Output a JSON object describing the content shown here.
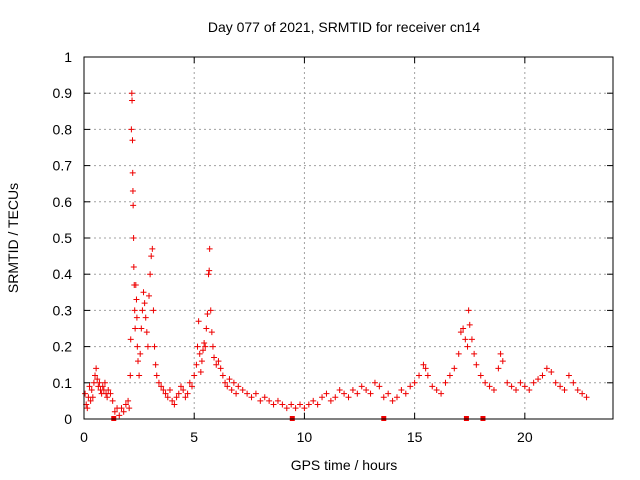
{
  "chart_data": {
    "type": "scatter",
    "title": "Day 077 of 2021, SRMTID for receiver cn14",
    "xlabel": "GPS time / hours",
    "ylabel": "SRMTID / TECUs",
    "xlim": [
      0,
      24
    ],
    "ylim": [
      0,
      1
    ],
    "x_ticks": [
      0,
      5,
      10,
      15,
      20
    ],
    "x_tick_labels": [
      "0",
      "5",
      "10",
      "15",
      "20"
    ],
    "y_ticks": [
      0,
      0.1,
      0.2,
      0.3,
      0.4,
      0.5,
      0.6,
      0.7,
      0.8,
      0.9,
      1
    ],
    "y_tick_labels": [
      "0",
      "0.1",
      "0.2",
      "0.3",
      "0.4",
      "0.5",
      "0.6",
      "0.7",
      "0.8",
      "0.9",
      "1"
    ],
    "grid": true,
    "marker": "+",
    "color": "#ee0000",
    "series": [
      {
        "name": "SRMTID",
        "points": [
          [
            0.05,
            0.07
          ],
          [
            0.1,
            0.04
          ],
          [
            0.15,
            0.03
          ],
          [
            0.2,
            0.06
          ],
          [
            0.25,
            0.09
          ],
          [
            0.3,
            0.05
          ],
          [
            0.35,
            0.08
          ],
          [
            0.4,
            0.06
          ],
          [
            0.45,
            0.1
          ],
          [
            0.5,
            0.12
          ],
          [
            0.55,
            0.14
          ],
          [
            0.6,
            0.11
          ],
          [
            0.65,
            0.09
          ],
          [
            0.7,
            0.1
          ],
          [
            0.75,
            0.08
          ],
          [
            0.8,
            0.07
          ],
          [
            0.85,
            0.09
          ],
          [
            0.9,
            0.08
          ],
          [
            0.95,
            0.1
          ],
          [
            1.0,
            0.07
          ],
          [
            1.05,
            0.06
          ],
          [
            1.1,
            0.08
          ],
          [
            1.2,
            0.07
          ],
          [
            1.3,
            0.05
          ],
          [
            1.4,
            0.02
          ],
          [
            1.5,
            0.03
          ],
          [
            1.6,
            0.01
          ],
          [
            1.7,
            0.03
          ],
          [
            1.8,
            0.02
          ],
          [
            1.9,
            0.04
          ],
          [
            2.0,
            0.05
          ],
          [
            2.05,
            0.03
          ],
          [
            2.1,
            0.12
          ],
          [
            2.12,
            0.22
          ],
          [
            2.15,
            0.8
          ],
          [
            2.17,
            0.9
          ],
          [
            2.18,
            0.88
          ],
          [
            2.2,
            0.77
          ],
          [
            2.21,
            0.68
          ],
          [
            2.22,
            0.63
          ],
          [
            2.23,
            0.59
          ],
          [
            2.25,
            0.5
          ],
          [
            2.26,
            0.42
          ],
          [
            2.28,
            0.37
          ],
          [
            2.3,
            0.3
          ],
          [
            2.32,
            0.25
          ],
          [
            2.35,
            0.37
          ],
          [
            2.38,
            0.33
          ],
          [
            2.4,
            0.28
          ],
          [
            2.42,
            0.2
          ],
          [
            2.45,
            0.16
          ],
          [
            2.5,
            0.12
          ],
          [
            2.55,
            0.18
          ],
          [
            2.6,
            0.25
          ],
          [
            2.65,
            0.3
          ],
          [
            2.7,
            0.35
          ],
          [
            2.75,
            0.32
          ],
          [
            2.8,
            0.28
          ],
          [
            2.85,
            0.24
          ],
          [
            2.9,
            0.2
          ],
          [
            2.95,
            0.34
          ],
          [
            3.0,
            0.4
          ],
          [
            3.05,
            0.45
          ],
          [
            3.1,
            0.47
          ],
          [
            3.15,
            0.3
          ],
          [
            3.2,
            0.2
          ],
          [
            3.25,
            0.15
          ],
          [
            3.3,
            0.12
          ],
          [
            3.4,
            0.1
          ],
          [
            3.5,
            0.09
          ],
          [
            3.6,
            0.08
          ],
          [
            3.7,
            0.07
          ],
          [
            3.8,
            0.06
          ],
          [
            3.9,
            0.08
          ],
          [
            4.0,
            0.05
          ],
          [
            4.1,
            0.04
          ],
          [
            4.2,
            0.06
          ],
          [
            4.3,
            0.07
          ],
          [
            4.4,
            0.09
          ],
          [
            4.5,
            0.08
          ],
          [
            4.6,
            0.06
          ],
          [
            4.7,
            0.07
          ],
          [
            4.8,
            0.1
          ],
          [
            4.9,
            0.09
          ],
          [
            5.0,
            0.12
          ],
          [
            5.1,
            0.15
          ],
          [
            5.15,
            0.2
          ],
          [
            5.2,
            0.27
          ],
          [
            5.25,
            0.18
          ],
          [
            5.3,
            0.13
          ],
          [
            5.35,
            0.16
          ],
          [
            5.4,
            0.19
          ],
          [
            5.45,
            0.21
          ],
          [
            5.5,
            0.2
          ],
          [
            5.55,
            0.25
          ],
          [
            5.6,
            0.29
          ],
          [
            5.65,
            0.4
          ],
          [
            5.68,
            0.41
          ],
          [
            5.7,
            0.47
          ],
          [
            5.75,
            0.3
          ],
          [
            5.8,
            0.24
          ],
          [
            5.85,
            0.2
          ],
          [
            5.9,
            0.17
          ],
          [
            6.0,
            0.15
          ],
          [
            6.1,
            0.16
          ],
          [
            6.2,
            0.14
          ],
          [
            6.3,
            0.12
          ],
          [
            6.4,
            0.1
          ],
          [
            6.5,
            0.09
          ],
          [
            6.6,
            0.11
          ],
          [
            6.7,
            0.08
          ],
          [
            6.8,
            0.1
          ],
          [
            6.9,
            0.07
          ],
          [
            7.0,
            0.09
          ],
          [
            7.2,
            0.08
          ],
          [
            7.4,
            0.07
          ],
          [
            7.6,
            0.06
          ],
          [
            7.8,
            0.07
          ],
          [
            8.0,
            0.05
          ],
          [
            8.2,
            0.06
          ],
          [
            8.4,
            0.05
          ],
          [
            8.6,
            0.04
          ],
          [
            8.8,
            0.05
          ],
          [
            9.0,
            0.04
          ],
          [
            9.2,
            0.03
          ],
          [
            9.4,
            0.04
          ],
          [
            9.6,
            0.03
          ],
          [
            9.8,
            0.04
          ],
          [
            10.0,
            0.03
          ],
          [
            10.2,
            0.04
          ],
          [
            10.4,
            0.05
          ],
          [
            10.6,
            0.04
          ],
          [
            10.8,
            0.06
          ],
          [
            11.0,
            0.07
          ],
          [
            11.2,
            0.05
          ],
          [
            11.4,
            0.06
          ],
          [
            11.6,
            0.08
          ],
          [
            11.8,
            0.07
          ],
          [
            12.0,
            0.06
          ],
          [
            12.2,
            0.08
          ],
          [
            12.4,
            0.07
          ],
          [
            12.6,
            0.09
          ],
          [
            12.8,
            0.08
          ],
          [
            13.0,
            0.07
          ],
          [
            13.2,
            0.1
          ],
          [
            13.4,
            0.09
          ],
          [
            13.6,
            0.06
          ],
          [
            13.8,
            0.07
          ],
          [
            14.0,
            0.05
          ],
          [
            14.2,
            0.06
          ],
          [
            14.4,
            0.08
          ],
          [
            14.6,
            0.07
          ],
          [
            14.8,
            0.09
          ],
          [
            15.0,
            0.1
          ],
          [
            15.2,
            0.12
          ],
          [
            15.4,
            0.15
          ],
          [
            15.5,
            0.14
          ],
          [
            15.6,
            0.12
          ],
          [
            15.8,
            0.09
          ],
          [
            16.0,
            0.08
          ],
          [
            16.2,
            0.07
          ],
          [
            16.4,
            0.1
          ],
          [
            16.6,
            0.12
          ],
          [
            16.8,
            0.14
          ],
          [
            17.0,
            0.18
          ],
          [
            17.1,
            0.24
          ],
          [
            17.2,
            0.25
          ],
          [
            17.3,
            0.22
          ],
          [
            17.4,
            0.2
          ],
          [
            17.45,
            0.3
          ],
          [
            17.5,
            0.26
          ],
          [
            17.6,
            0.22
          ],
          [
            17.7,
            0.18
          ],
          [
            17.8,
            0.15
          ],
          [
            18.0,
            0.12
          ],
          [
            18.2,
            0.1
          ],
          [
            18.4,
            0.09
          ],
          [
            18.6,
            0.08
          ],
          [
            18.8,
            0.14
          ],
          [
            18.9,
            0.18
          ],
          [
            19.0,
            0.16
          ],
          [
            19.2,
            0.1
          ],
          [
            19.4,
            0.09
          ],
          [
            19.6,
            0.08
          ],
          [
            19.8,
            0.1
          ],
          [
            20.0,
            0.09
          ],
          [
            20.2,
            0.08
          ],
          [
            20.4,
            0.1
          ],
          [
            20.6,
            0.11
          ],
          [
            20.8,
            0.12
          ],
          [
            21.0,
            0.14
          ],
          [
            21.2,
            0.13
          ],
          [
            21.4,
            0.1
          ],
          [
            21.6,
            0.09
          ],
          [
            21.8,
            0.08
          ],
          [
            22.0,
            0.12
          ],
          [
            22.2,
            0.1
          ],
          [
            22.4,
            0.08
          ],
          [
            22.6,
            0.07
          ],
          [
            22.8,
            0.06
          ]
        ]
      }
    ],
    "gap_markers_x": [
      1.35,
      9.45,
      13.6,
      17.35,
      18.1
    ]
  }
}
